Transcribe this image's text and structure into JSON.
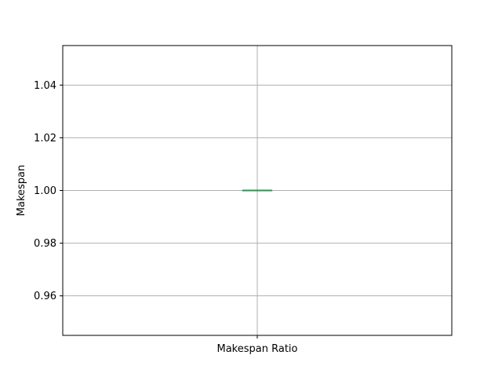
{
  "chart_data": {
    "type": "box",
    "categories": [
      "Makespan Ratio"
    ],
    "series": [
      {
        "stats": {
          "min": 1.0,
          "q1": 1.0,
          "median": 1.0,
          "q3": 1.0,
          "max": 1.0
        }
      }
    ],
    "xlabel": "",
    "ylabel": "Makespan",
    "ylim": [
      0.945,
      1.055
    ],
    "yticks": [
      0.96,
      0.98,
      1.0,
      1.02,
      1.04
    ],
    "yticklabels": [
      "0.96",
      "0.98",
      "1.00",
      "1.02",
      "1.04"
    ],
    "grid": true,
    "colors": {
      "grid": "#b0b0b0",
      "median": "#2ca02c",
      "box": "#1f77b4",
      "frame": "#000000"
    }
  }
}
